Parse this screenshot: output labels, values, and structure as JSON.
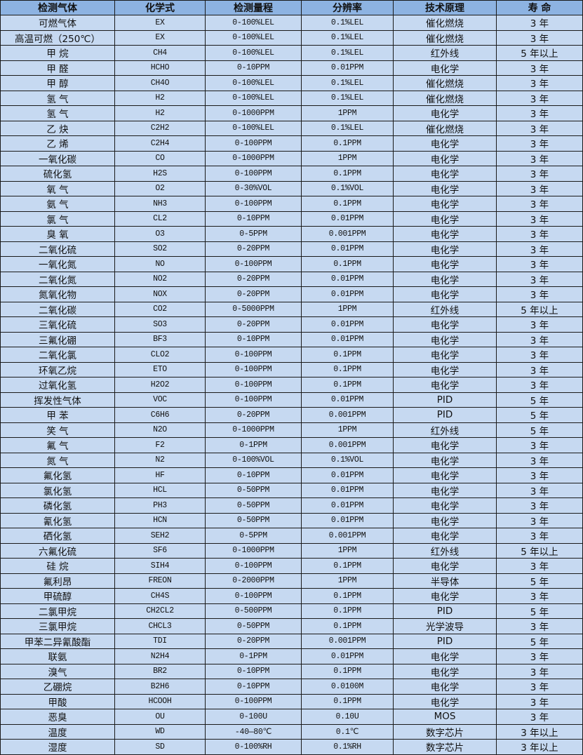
{
  "table": {
    "headers": [
      "检测气体",
      "化学式",
      "检测量程",
      "分辨率",
      "技术原理",
      "寿 命"
    ],
    "header_bg": "#8db3e2",
    "row_bg": "#c6d9f1",
    "rows": [
      [
        "可燃气体",
        "EX",
        "0-100%LEL",
        "0.1%LEL",
        "催化燃烧",
        "3 年"
      ],
      [
        "高温可燃（250℃）",
        "EX",
        "0-100%LEL",
        "0.1%LEL",
        "催化燃烧",
        "3 年"
      ],
      [
        "甲 烷",
        "CH4",
        "0-100%LEL",
        "0.1%LEL",
        "红外线",
        "5 年以上"
      ],
      [
        "甲 醛",
        "HCHO",
        "0-10PPM",
        "0.01PPM",
        "电化学",
        "3 年"
      ],
      [
        "甲 醇",
        "CH4O",
        "0-100%LEL",
        "0.1%LEL",
        "催化燃烧",
        "3 年"
      ],
      [
        "氢 气",
        "H2",
        "0-100%LEL",
        "0.1%LEL",
        "催化燃烧",
        "3 年"
      ],
      [
        "氢 气",
        "H2",
        "0-1000PPM",
        "1PPM",
        "电化学",
        "3 年"
      ],
      [
        "乙 炔",
        "C2H2",
        "0-100%LEL",
        "0.1%LEL",
        "催化燃烧",
        "3 年"
      ],
      [
        "乙 烯",
        "C2H4",
        "0-100PPM",
        "0.1PPM",
        "电化学",
        "3 年"
      ],
      [
        "一氧化碳",
        "CO",
        "0-1000PPM",
        "1PPM",
        "电化学",
        "3 年"
      ],
      [
        "硫化氢",
        "H2S",
        "0-100PPM",
        "0.1PPM",
        "电化学",
        "3 年"
      ],
      [
        "氧 气",
        "O2",
        "0-30%VOL",
        "0.1%VOL",
        "电化学",
        "3 年"
      ],
      [
        "氨 气",
        "NH3",
        "0-100PPM",
        "0.1PPM",
        "电化学",
        "3 年"
      ],
      [
        "氯 气",
        "CL2",
        "0-10PPM",
        "0.01PPM",
        "电化学",
        "3 年"
      ],
      [
        "臭 氧",
        "O3",
        "0-5PPM",
        "0.001PPM",
        "电化学",
        "3 年"
      ],
      [
        "二氧化硫",
        "SO2",
        "0-20PPM",
        "0.01PPM",
        "电化学",
        "3 年"
      ],
      [
        "一氧化氮",
        "NO",
        "0-100PPM",
        "0.1PPM",
        "电化学",
        "3 年"
      ],
      [
        "二氧化氮",
        "NO2",
        "0-20PPM",
        "0.01PPM",
        "电化学",
        "3 年"
      ],
      [
        "氮氧化物",
        "NOX",
        "0-20PPM",
        "0.01PPM",
        "电化学",
        "3 年"
      ],
      [
        "二氧化碳",
        "CO2",
        "0-5000PPM",
        "1PPM",
        "红外线",
        "5 年以上"
      ],
      [
        "三氧化硫",
        "SO3",
        "0-20PPM",
        "0.01PPM",
        "电化学",
        "3 年"
      ],
      [
        "三氟化硼",
        "BF3",
        "0-10PPM",
        "0.01PPM",
        "电化学",
        "3 年"
      ],
      [
        "二氧化氯",
        "CLO2",
        "0-100PPM",
        "0.1PPM",
        "电化学",
        "3 年"
      ],
      [
        "环氧乙烷",
        "ETO",
        "0-100PPM",
        "0.1PPM",
        "电化学",
        "3 年"
      ],
      [
        "过氧化氢",
        "H2O2",
        "0-100PPM",
        "0.1PPM",
        "电化学",
        "3 年"
      ],
      [
        "挥发性气体",
        "VOC",
        "0-100PPM",
        "0.01PPM",
        "PID",
        "5 年"
      ],
      [
        "甲 苯",
        "C6H6",
        "0-20PPM",
        "0.001PPM",
        "PID",
        "5 年"
      ],
      [
        "笑 气",
        "N2O",
        "0-1000PPM",
        "1PPM",
        "红外线",
        "5 年"
      ],
      [
        "氟 气",
        "F2",
        "0-1PPM",
        "0.001PPM",
        "电化学",
        "3 年"
      ],
      [
        "氮 气",
        "N2",
        "0-100%VOL",
        "0.1%VOL",
        "电化学",
        "3 年"
      ],
      [
        "氟化氢",
        "HF",
        "0-10PPM",
        "0.01PPM",
        "电化学",
        "3 年"
      ],
      [
        "氯化氢",
        "HCL",
        "0-50PPM",
        "0.01PPM",
        "电化学",
        "3 年"
      ],
      [
        "磷化氢",
        "PH3",
        "0-50PPM",
        "0.01PPM",
        "电化学",
        "3 年"
      ],
      [
        "氰化氢",
        "HCN",
        "0-50PPM",
        "0.01PPM",
        "电化学",
        "3 年"
      ],
      [
        "硒化氢",
        "SEH2",
        "0-5PPM",
        "0.001PPM",
        "电化学",
        "3 年"
      ],
      [
        "六氟化硫",
        "SF6",
        "0-1000PPM",
        "1PPM",
        "红外线",
        "5 年以上"
      ],
      [
        "硅 烷",
        "SIH4",
        "0-100PPM",
        "0.1PPM",
        "电化学",
        "3 年"
      ],
      [
        "氟利昂",
        "FREON",
        "0-2000PPM",
        "1PPM",
        "半导体",
        "5 年"
      ],
      [
        "甲硫醇",
        "CH4S",
        "0-100PPM",
        "0.1PPM",
        "电化学",
        "3 年"
      ],
      [
        "二氯甲烷",
        "CH2CL2",
        "0-500PPM",
        "0.1PPM",
        "PID",
        "5 年"
      ],
      [
        "三氯甲烷",
        "CHCL3",
        "0-50PPM",
        "0.1PPM",
        "光学波导",
        "3 年"
      ],
      [
        "甲苯二异氰酸酯",
        "TDI",
        "0-20PPM",
        "0.001PPM",
        "PID",
        "5 年"
      ],
      [
        "联氨",
        "N2H4",
        "0-1PPM",
        "0.01PPM",
        "电化学",
        "3 年"
      ],
      [
        "溴气",
        "BR2",
        "0-10PPM",
        "0.1PPM",
        "电化学",
        "3 年"
      ],
      [
        "乙硼烷",
        "B2H6",
        "0-10PPM",
        "0.0100M",
        "电化学",
        "3 年"
      ],
      [
        "甲酸",
        "HCOOH",
        "0-100PPM",
        "0.1PPM",
        "电化学",
        "3 年"
      ],
      [
        "恶臭",
        "OU",
        "0-100U",
        "0.10U",
        "MOS",
        "3 年"
      ],
      [
        "温度",
        "WD",
        "-40—80℃",
        "0.1℃",
        "数字芯片",
        "3 年以上"
      ],
      [
        "湿度",
        "SD",
        "0-100%RH",
        "0.1%RH",
        "数字芯片",
        "3 年以上"
      ]
    ]
  }
}
